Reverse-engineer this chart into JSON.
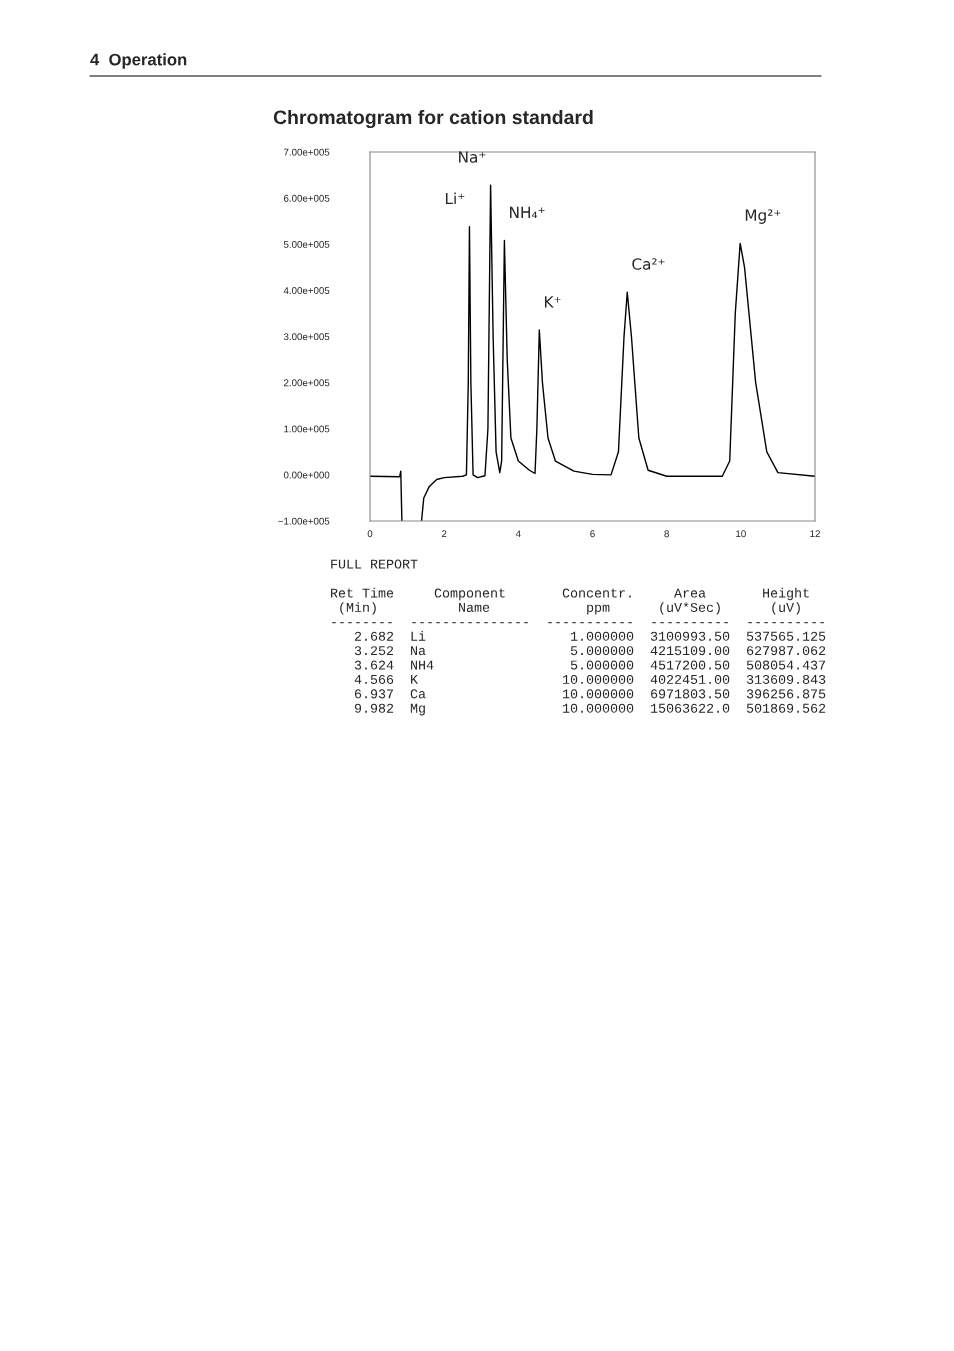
{
  "chart_data": {
    "type": "line",
    "title": "Chromatogram for cation standard",
    "x": [
      0,
      0.8,
      0.83,
      0.86,
      0.87,
      1.38,
      1.39,
      1.45,
      1.6,
      1.8,
      2.0,
      2.5,
      2.6,
      2.65,
      2.682,
      2.72,
      2.78,
      2.9,
      3.1,
      3.18,
      3.252,
      3.32,
      3.4,
      3.5,
      3.55,
      3.624,
      3.7,
      3.8,
      4.0,
      4.3,
      4.45,
      4.5,
      4.566,
      4.65,
      4.8,
      5.0,
      5.5,
      6.0,
      6.5,
      6.7,
      6.85,
      6.937,
      7.05,
      7.25,
      7.5,
      8.0,
      9.5,
      9.7,
      9.85,
      9.982,
      10.1,
      10.4,
      10.7,
      11.0,
      12.0
    ],
    "series": [
      {
        "color": "#000000",
        "values": [
          -3000,
          -4000,
          8000,
          -100000,
          null,
          null,
          -100000,
          -50000,
          -25000,
          -10000,
          -6000,
          -3000,
          0,
          200000,
          538000,
          200000,
          0,
          -6000,
          -2000,
          100000,
          628000,
          300000,
          50000,
          5000,
          30000,
          508000,
          250000,
          80000,
          30000,
          10000,
          3000,
          100000,
          314000,
          200000,
          80000,
          30000,
          8000,
          1000,
          0,
          50000,
          300000,
          396000,
          300000,
          80000,
          10000,
          -3000,
          -3000,
          30000,
          350000,
          502000,
          450000,
          200000,
          50000,
          5000,
          -3000
        ]
      }
    ],
    "xlim": [
      0,
      12
    ],
    "xticks": [
      0,
      2,
      4,
      6,
      8,
      10,
      12
    ],
    "ylim": [
      -100000,
      700000
    ],
    "yticks": [
      {
        "value": -100000,
        "label": "−1.00e+005"
      },
      {
        "value": 0,
        "label": "0.00e+000"
      },
      {
        "value": 100000,
        "label": "1.00e+005"
      },
      {
        "value": 200000,
        "label": "2.00e+005"
      },
      {
        "value": 300000,
        "label": "3.00e+005"
      },
      {
        "value": 400000,
        "label": "4.00e+005"
      },
      {
        "value": 500000,
        "label": "5.00e+005"
      },
      {
        "value": 600000,
        "label": "6.00e+005"
      },
      {
        "value": 700000,
        "label": "7.00e+005"
      }
    ],
    "grid": false,
    "marker": "none",
    "line_style": "solid",
    "annotations": [
      "4  Operation",
      {
        "text": "Li⁺",
        "x": 2.682,
        "y": 538000
      },
      {
        "text": "Na⁺",
        "x": 3.252,
        "y": 628000
      },
      {
        "text": "NH₄⁺",
        "x": 3.624,
        "y": 508000
      },
      {
        "text": "K⁺",
        "x": 4.566,
        "y": 314000
      },
      {
        "text": "Ca²⁺",
        "x": 6.937,
        "y": 396000
      },
      {
        "text": "Mg²⁺",
        "x": 9.982,
        "y": 502000
      },
      "FULL REPORT",
      "Ret Time     Component       Concentr.     Area       Height",
      " (Min)          Name            ppm      (uV*Sec)      (uV)",
      "--------  ---------------  -----------  ----------  ----------",
      "   2.682  Li                  1.000000  3100993.50  537565.125",
      "   3.252  Na                  5.000000  4215109.00  627987.062",
      "   3.624  NH4                 5.000000  4517200.50  508054.437",
      "   4.566  K                  10.000000  4022451.00  313609.843",
      "   6.937  Ca                 10.000000  6971803.50  396256.875",
      "   9.982  Mg                 10.000000  15063622.0  501869.562"
    ]
  }
}
